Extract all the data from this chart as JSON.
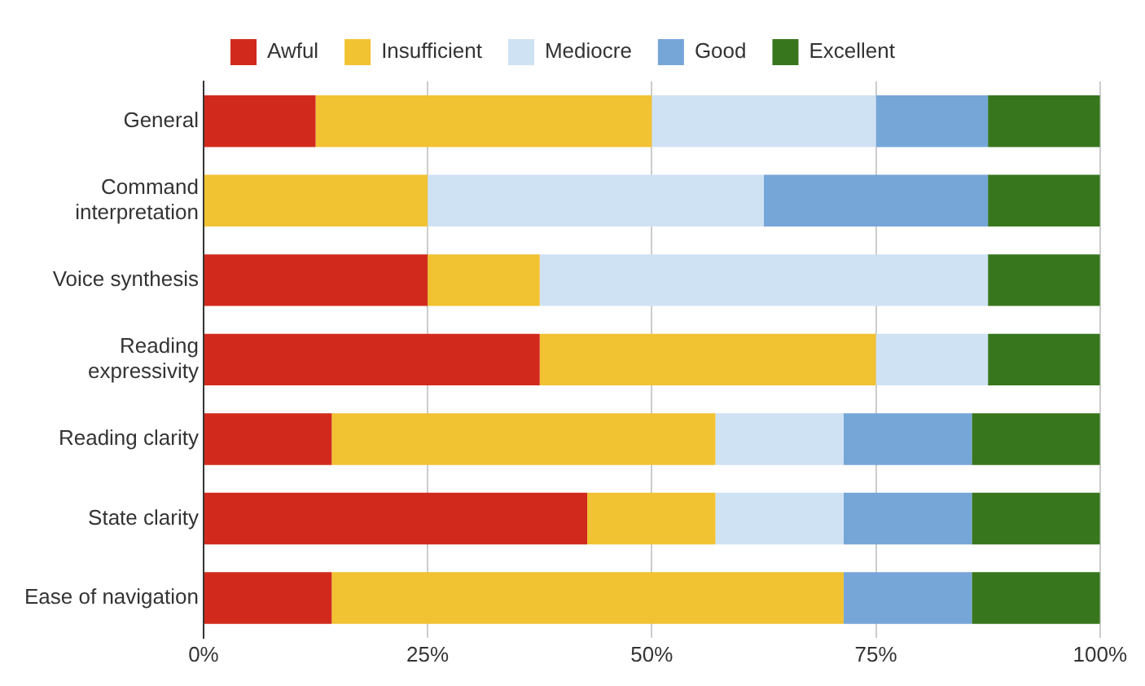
{
  "chart_data": {
    "type": "bar",
    "orientation": "horizontal",
    "stacked": true,
    "categories": [
      "General",
      "Command interpretation",
      "Voice synthesis",
      "Reading expressivity",
      "Reading clarity",
      "State clarity",
      "Ease of navigation"
    ],
    "series": [
      {
        "name": "Awful",
        "color": "#d12a1c",
        "values": [
          12.5,
          0,
          25,
          37.5,
          14.3,
          42.8,
          14.3
        ]
      },
      {
        "name": "Insufficient",
        "color": "#f1c232",
        "values": [
          37.5,
          25,
          12.5,
          37.5,
          42.8,
          14.3,
          57.1
        ]
      },
      {
        "name": "Mediocre",
        "color": "#cfe2f3",
        "values": [
          25,
          37.5,
          50,
          12.5,
          14.3,
          14.3,
          0
        ]
      },
      {
        "name": "Good",
        "color": "#76a5d8",
        "values": [
          12.5,
          25,
          0,
          0,
          14.3,
          14.3,
          14.3
        ]
      },
      {
        "name": "Excellent",
        "color": "#38761d",
        "values": [
          12.5,
          12.5,
          12.5,
          12.5,
          14.3,
          14.3,
          14.3
        ]
      }
    ],
    "xlim": [
      0,
      100
    ],
    "xticks": [
      {
        "value": 0,
        "label": "0%"
      },
      {
        "value": 25,
        "label": "25%"
      },
      {
        "value": 50,
        "label": "50%"
      },
      {
        "value": 75,
        "label": "75%"
      },
      {
        "value": 100,
        "label": "100%"
      }
    ],
    "grid": "x",
    "legend": "top"
  }
}
